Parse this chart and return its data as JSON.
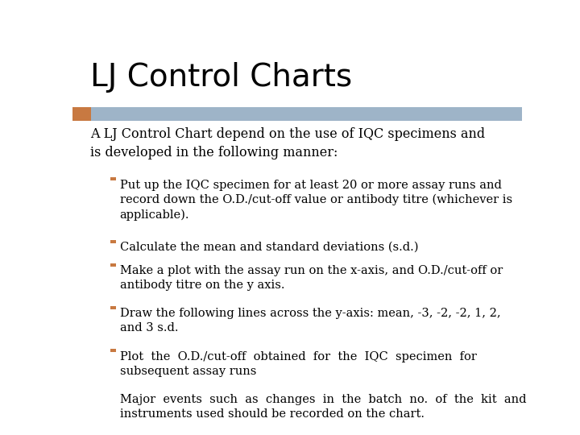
{
  "title": "LJ Control Charts",
  "title_fontsize": 28,
  "title_font": "DejaVu Sans",
  "title_color": "#000000",
  "title_bold": false,
  "subtitle": "A LJ Control Chart depend on the use of IQC specimens and\nis developed in the following manner:",
  "subtitle_fontsize": 11.5,
  "subtitle_font": "serif",
  "subtitle_color": "#000000",
  "banner_color_left": "#c87941",
  "banner_color_right": "#9eb4c8",
  "bullet_color": "#c87941",
  "bullet_fontsize": 10.5,
  "bullet_font": "serif",
  "bullet_color_text": "#000000",
  "background_color": "#ffffff",
  "bullets": [
    "Put up the IQC specimen for at least 20 or more assay runs and\nrecord down the O.D./cut-off value or antibody titre (whichever is\napplicable).",
    "Calculate the mean and standard deviations (s.d.)",
    "Make a plot with the assay run on the x-axis, and O.D./cut-off or\nantibody titre on the y axis.",
    "Draw the following lines across the y-axis: mean, -3, -2, -2, 1, 2,\nand 3 s.d.",
    "Plot  the  O.D./cut-off  obtained  for  the  IQC  specimen  for\nsubsequent assay runs",
    "Major  events  such  as  changes  in  the  batch  no.  of  the  kit  and\ninstruments used should be recorded on the chart."
  ]
}
